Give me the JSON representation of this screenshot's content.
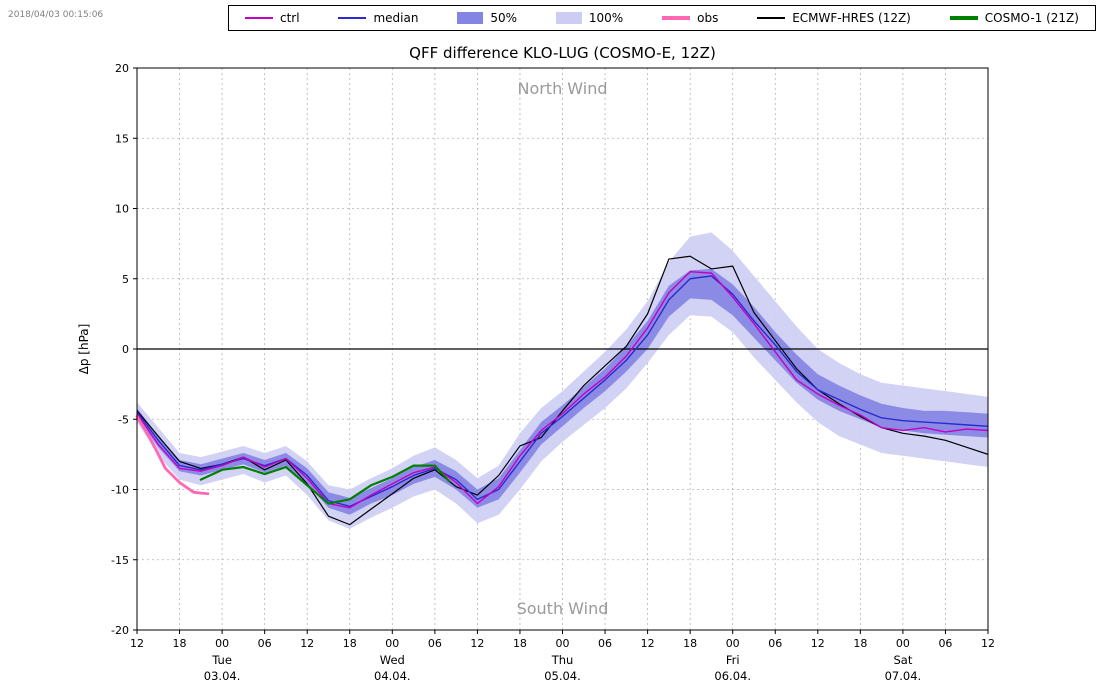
{
  "header": {
    "timestamp": "2018/04/03 00:15:06"
  },
  "legend": {
    "items": [
      {
        "label": "ctrl",
        "swatch": "line",
        "color": "#c400c4",
        "width": 2
      },
      {
        "label": "median",
        "swatch": "line",
        "color": "#2a2ad0",
        "width": 2
      },
      {
        "label": "50%",
        "swatch": "patch",
        "color": "#8484e4"
      },
      {
        "label": "100%",
        "swatch": "patch",
        "color": "#cdcdf4"
      },
      {
        "label": "obs",
        "swatch": "line",
        "color": "#ff69b4",
        "width": 4
      },
      {
        "label": "ECMWF-HRES (12Z)",
        "swatch": "line",
        "color": "#000000",
        "width": 2
      },
      {
        "label": "COSMO-1 (21Z)",
        "swatch": "line",
        "color": "#008000",
        "width": 4
      }
    ]
  },
  "chart_data": {
    "type": "line",
    "title": "QFF difference KLO-LUG (COSMO-E, 12Z)",
    "ylabel": "Δp [hPa]",
    "ylim": [
      -20,
      20
    ],
    "y_ticks": [
      -20,
      -15,
      -10,
      -5,
      0,
      5,
      10,
      15,
      20
    ],
    "x_range": [
      0,
      120
    ],
    "x_tick_interval": 6,
    "x_tick_labels": [
      "12",
      "18",
      "00",
      "06",
      "12",
      "18",
      "00",
      "06",
      "12",
      "18",
      "00",
      "06",
      "12",
      "18",
      "00",
      "06",
      "12",
      "18",
      "00",
      "06",
      "12"
    ],
    "day_labels": [
      {
        "name": "Tue",
        "date": "03.04.",
        "hour": 12
      },
      {
        "name": "Wed",
        "date": "04.04.",
        "hour": 36
      },
      {
        "name": "Thu",
        "date": "05.04.",
        "hour": 60
      },
      {
        "name": "Fri",
        "date": "06.04.",
        "hour": 84
      },
      {
        "name": "Sat",
        "date": "07.04.",
        "hour": 108
      }
    ],
    "annotations": {
      "top": "North Wind",
      "bottom": "South Wind"
    },
    "grid": true,
    "zero_line": 0,
    "hours": [
      0,
      3,
      6,
      9,
      12,
      15,
      18,
      21,
      24,
      27,
      30,
      33,
      36,
      39,
      42,
      45,
      48,
      51,
      54,
      57,
      60,
      63,
      66,
      69,
      72,
      75,
      78,
      81,
      84,
      87,
      90,
      93,
      96,
      99,
      102,
      105,
      108,
      111,
      114,
      117,
      120
    ],
    "bands": [
      {
        "name": "100%",
        "color": "#cdcdf4",
        "opacity": 0.9,
        "lower": [
          -5.2,
          -7.6,
          -9.3,
          -9.7,
          -9.3,
          -8.9,
          -9.5,
          -9.0,
          -10.4,
          -12.2,
          -12.8,
          -12.0,
          -11.3,
          -10.5,
          -10.0,
          -11.0,
          -12.4,
          -11.8,
          -10.0,
          -8.0,
          -6.6,
          -5.4,
          -4.2,
          -2.8,
          -1.0,
          1.0,
          2.4,
          2.3,
          1.2,
          -0.6,
          -2.2,
          -3.8,
          -5.2,
          -6.2,
          -6.8,
          -7.4,
          -7.6,
          -7.8,
          -8.0,
          -8.2,
          -8.4
        ],
        "upper": [
          -3.8,
          -5.6,
          -7.4,
          -7.7,
          -7.3,
          -6.9,
          -7.4,
          -6.9,
          -8.0,
          -9.7,
          -10.0,
          -9.2,
          -8.5,
          -7.6,
          -7.0,
          -7.9,
          -9.2,
          -8.3,
          -6.0,
          -4.2,
          -3.0,
          -1.6,
          -0.2,
          1.4,
          3.4,
          6.2,
          8.0,
          8.3,
          7.0,
          5.2,
          3.4,
          1.6,
          0.0,
          -1.0,
          -1.8,
          -2.4,
          -2.6,
          -2.8,
          -3.0,
          -3.2,
          -3.4
        ]
      },
      {
        "name": "50%",
        "color": "#8484e4",
        "opacity": 0.92,
        "lower": [
          -4.8,
          -7.0,
          -8.7,
          -9.0,
          -8.6,
          -8.2,
          -8.8,
          -8.3,
          -9.6,
          -11.3,
          -11.8,
          -11.0,
          -10.4,
          -9.6,
          -9.1,
          -10.0,
          -11.3,
          -10.7,
          -8.8,
          -6.8,
          -5.5,
          -4.2,
          -3.0,
          -1.6,
          0.0,
          2.3,
          3.6,
          3.5,
          2.4,
          0.8,
          -0.8,
          -2.4,
          -3.6,
          -4.4,
          -5.0,
          -5.6,
          -5.8,
          -6.0,
          -6.1,
          -6.2,
          -6.3
        ],
        "upper": [
          -4.2,
          -6.2,
          -7.9,
          -8.2,
          -7.8,
          -7.4,
          -7.9,
          -7.4,
          -8.5,
          -10.2,
          -10.6,
          -9.9,
          -9.2,
          -8.4,
          -7.9,
          -8.7,
          -10.0,
          -9.2,
          -7.2,
          -5.2,
          -4.0,
          -2.7,
          -1.4,
          0.2,
          2.0,
          4.5,
          5.6,
          5.7,
          4.6,
          3.0,
          1.2,
          -0.4,
          -1.8,
          -2.6,
          -3.3,
          -3.9,
          -4.2,
          -4.4,
          -4.4,
          -4.5,
          -4.6
        ]
      }
    ],
    "series": [
      {
        "name": "ECMWF-HRES (12Z)",
        "color": "#000000",
        "width": 1.2,
        "values": [
          -4.4,
          -6.2,
          -8.0,
          -8.5,
          -8.2,
          -7.7,
          -8.6,
          -7.9,
          -9.6,
          -11.9,
          -12.5,
          -11.4,
          -10.3,
          -9.2,
          -8.6,
          -9.8,
          -10.4,
          -9.0,
          -6.9,
          -6.3,
          -4.4,
          -2.6,
          -1.2,
          0.2,
          2.5,
          6.4,
          6.6,
          5.7,
          5.9,
          2.6,
          0.6,
          -1.4,
          -2.9,
          -3.9,
          -4.8,
          -5.6,
          -6.0,
          -6.2,
          -6.5,
          -7.0,
          -7.5
        ]
      },
      {
        "name": "median",
        "color": "#2a2ad0",
        "width": 1.4,
        "values": [
          -4.5,
          -6.5,
          -8.3,
          -8.6,
          -8.2,
          -7.8,
          -8.3,
          -7.8,
          -9.0,
          -10.8,
          -11.2,
          -10.5,
          -9.8,
          -9.0,
          -8.5,
          -9.3,
          -10.7,
          -10.0,
          -8.0,
          -6.0,
          -4.8,
          -3.5,
          -2.2,
          -0.8,
          1.0,
          3.5,
          5.0,
          5.2,
          3.9,
          2.0,
          0.3,
          -1.6,
          -2.9,
          -3.6,
          -4.3,
          -4.9,
          -5.1,
          -5.2,
          -5.3,
          -5.4,
          -5.5
        ]
      },
      {
        "name": "ctrl",
        "color": "#c400c4",
        "width": 1.4,
        "values": [
          -4.6,
          -6.8,
          -8.5,
          -8.7,
          -8.3,
          -7.7,
          -8.4,
          -7.8,
          -9.2,
          -11.0,
          -11.3,
          -10.4,
          -9.6,
          -8.8,
          -8.4,
          -9.5,
          -11.0,
          -9.8,
          -7.6,
          -5.8,
          -4.6,
          -3.2,
          -2.0,
          -0.5,
          1.5,
          4.0,
          5.5,
          5.4,
          3.7,
          1.8,
          -0.2,
          -2.2,
          -3.2,
          -4.0,
          -4.7,
          -5.6,
          -5.8,
          -5.6,
          -5.9,
          -5.7,
          -5.8
        ]
      }
    ],
    "partial_series": [
      {
        "name": "COSMO-1 (21Z)",
        "color": "#008000",
        "width": 2.2,
        "hours": [
          9,
          12,
          15,
          18,
          21,
          24,
          27,
          30,
          33,
          36,
          39,
          42,
          44
        ],
        "values": [
          -9.3,
          -8.6,
          -8.4,
          -8.9,
          -8.4,
          -9.7,
          -11.0,
          -10.7,
          -9.7,
          -9.1,
          -8.3,
          -8.3,
          -9.4
        ]
      },
      {
        "name": "obs",
        "color": "#ff69b4",
        "width": 2.8,
        "hours": [
          0,
          2,
          4,
          6,
          8,
          10
        ],
        "values": [
          -4.8,
          -6.5,
          -8.5,
          -9.5,
          -10.2,
          -10.3
        ]
      }
    ]
  }
}
